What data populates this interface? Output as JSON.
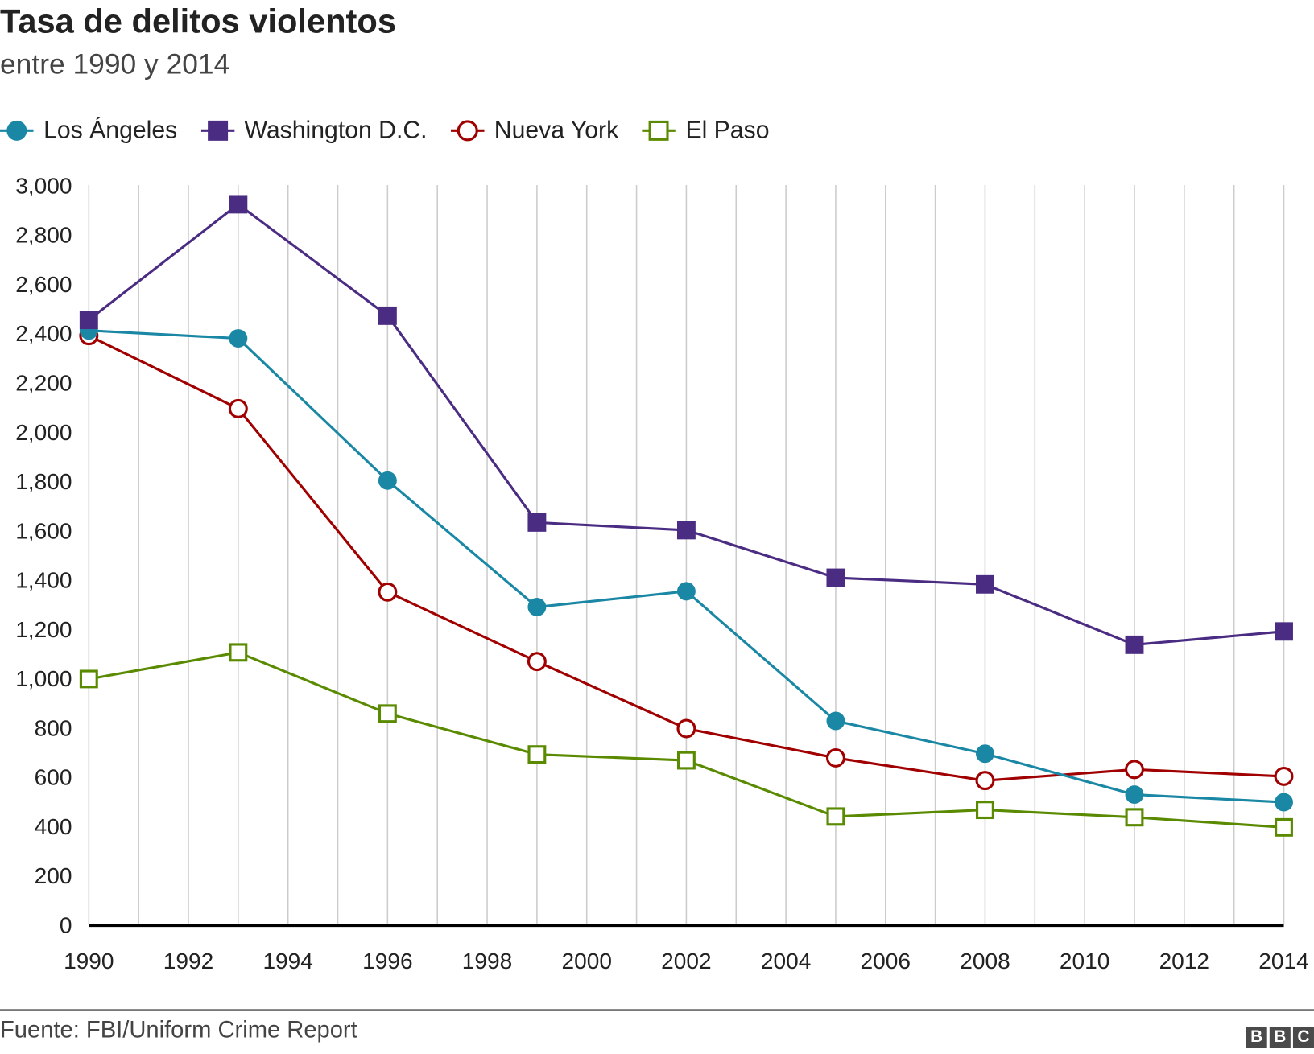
{
  "chart_data": {
    "type": "line",
    "title": "Tasa de delitos violentos",
    "subtitle": "entre 1990 y 2014",
    "x": [
      1990,
      1993,
      1996,
      1999,
      2002,
      2005,
      2008,
      2011,
      2014
    ],
    "xlim": [
      1990,
      2014
    ],
    "ylim": [
      0,
      3000
    ],
    "x_ticks": [
      "1990",
      "1992",
      "1994",
      "1996",
      "1998",
      "2000",
      "2002",
      "2004",
      "2006",
      "2008",
      "2010",
      "2012",
      "2014"
    ],
    "y_ticks": [
      "0",
      "200",
      "400",
      "600",
      "800",
      "1,000",
      "1,200",
      "1,400",
      "1,600",
      "1,800",
      "2,000",
      "2,200",
      "2,400",
      "2,600",
      "2,800",
      "3,000"
    ],
    "grid": "vertical",
    "legend_position": "top-left",
    "series": [
      {
        "name": "Los Ángeles",
        "color": "#1a87a5",
        "marker": "filled-circle",
        "values": [
          2410,
          2378,
          1801,
          1288,
          1352,
          826,
          693,
          527,
          496
        ]
      },
      {
        "name": "Washington D.C.",
        "color": "#4b2c83",
        "marker": "filled-square",
        "values": [
          2453,
          2922,
          2470,
          1631,
          1600,
          1407,
          1380,
          1135,
          1189
        ]
      },
      {
        "name": "Nueva York",
        "color": "#a00000",
        "marker": "open-circle",
        "values": [
          2389,
          2093,
          1349,
          1067,
          795,
          676,
          584,
          629,
          601
        ]
      },
      {
        "name": "El Paso",
        "color": "#5a8a00",
        "marker": "open-square",
        "values": [
          996,
          1104,
          856,
          690,
          666,
          438,
          465,
          435,
          394
        ]
      }
    ]
  },
  "footer": {
    "source": "Fuente: FBI/Uniform Crime Report",
    "logo": "BBC"
  }
}
